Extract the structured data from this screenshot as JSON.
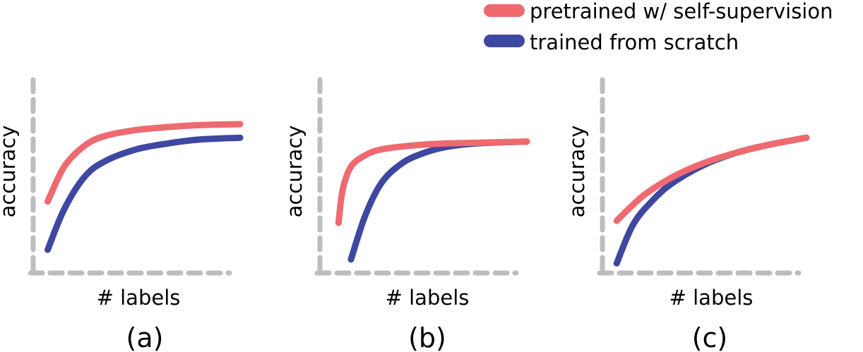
{
  "legend": {
    "placement": "top-right",
    "items": [
      {
        "label": "pretrained w/ self-supervision",
        "color": "#ee6a6f"
      },
      {
        "label": "trained from scratch",
        "color": "#3f48a0"
      }
    ]
  },
  "axis_style": {
    "color": "#bdbdbd",
    "dashed": true
  },
  "chart_data": [
    {
      "type": "line",
      "panel_label": "(a)",
      "xlabel": "# labels",
      "ylabel": "accuracy",
      "xlim": [
        0,
        1
      ],
      "ylim": [
        0,
        1
      ],
      "series": [
        {
          "name": "pretrained w/ self-supervision",
          "color": "#ee6a6f",
          "x": [
            0.07,
            0.15,
            0.25,
            0.35,
            0.5,
            0.65,
            0.8,
            1.0
          ],
          "y": [
            0.37,
            0.55,
            0.66,
            0.71,
            0.74,
            0.755,
            0.765,
            0.77
          ]
        },
        {
          "name": "trained from scratch",
          "color": "#3f48a0",
          "x": [
            0.07,
            0.15,
            0.25,
            0.35,
            0.5,
            0.65,
            0.8,
            1.0
          ],
          "y": [
            0.12,
            0.33,
            0.5,
            0.58,
            0.64,
            0.67,
            0.69,
            0.7
          ]
        }
      ]
    },
    {
      "type": "line",
      "panel_label": "(b)",
      "xlabel": "# labels",
      "ylabel": "accuracy",
      "xlim": [
        0,
        1
      ],
      "ylim": [
        0,
        1
      ],
      "series": [
        {
          "name": "pretrained w/ self-supervision",
          "color": "#ee6a6f",
          "x": [
            0.09,
            0.11,
            0.15,
            0.22,
            0.3,
            0.45,
            0.6,
            0.8,
            1.0
          ],
          "y": [
            0.26,
            0.43,
            0.55,
            0.61,
            0.64,
            0.66,
            0.67,
            0.675,
            0.68
          ]
        },
        {
          "name": "trained from scratch",
          "color": "#3f48a0",
          "x": [
            0.15,
            0.22,
            0.3,
            0.4,
            0.5,
            0.6,
            0.75,
            1.0
          ],
          "y": [
            0.07,
            0.3,
            0.47,
            0.57,
            0.62,
            0.65,
            0.67,
            0.68
          ]
        }
      ]
    },
    {
      "type": "line",
      "panel_label": "(c)",
      "xlabel": "# labels",
      "ylabel": "accuracy",
      "xlim": [
        0,
        1
      ],
      "ylim": [
        0,
        1
      ],
      "series": [
        {
          "name": "pretrained w/ self-supervision",
          "color": "#ee6a6f",
          "x": [
            0.07,
            0.2,
            0.35,
            0.5,
            0.65,
            0.8,
            1.0
          ],
          "y": [
            0.27,
            0.4,
            0.5,
            0.57,
            0.62,
            0.66,
            0.7
          ]
        },
        {
          "name": "trained from scratch",
          "color": "#3f48a0",
          "x": [
            0.07,
            0.15,
            0.25,
            0.35,
            0.5,
            0.65,
            0.8,
            1.0
          ],
          "y": [
            0.05,
            0.25,
            0.38,
            0.47,
            0.56,
            0.62,
            0.66,
            0.7
          ]
        }
      ]
    }
  ]
}
